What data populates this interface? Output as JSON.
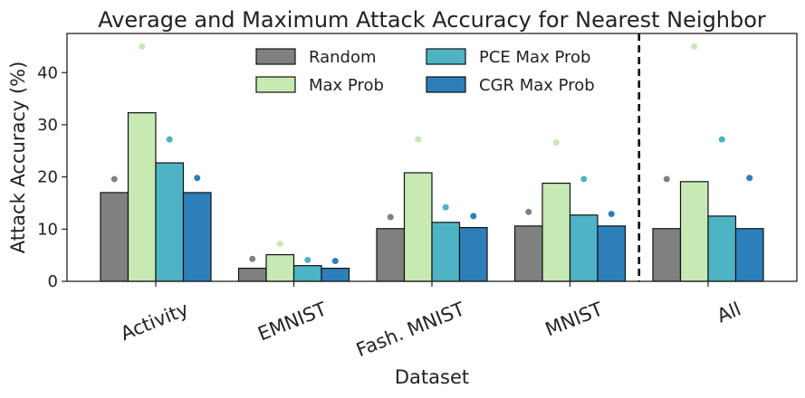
{
  "chart_data": {
    "type": "bar",
    "title": "Average and Maximum Attack Accuracy for Nearest Neighbor",
    "xlabel": "Dataset",
    "ylabel": "Attack Accuracy (%)",
    "ylim": [
      0,
      47.5
    ],
    "yticks": [
      0,
      10,
      20,
      30,
      40
    ],
    "grid": false,
    "legend_position": "top",
    "categories": [
      "Activity",
      "EMNIST",
      "Fash. MNIST",
      "MNIST",
      "All"
    ],
    "separator_after_category": "MNIST",
    "series": [
      {
        "name": "Random",
        "color": "#808080",
        "values": [
          17.0,
          2.5,
          10.1,
          10.6,
          10.1
        ],
        "max_values": [
          19.6,
          4.3,
          12.3,
          13.3,
          19.6
        ]
      },
      {
        "name": "Max Prob",
        "color": "#c7e9b4",
        "values": [
          32.3,
          5.1,
          20.8,
          18.8,
          19.1
        ],
        "max_values": [
          45.0,
          7.2,
          27.2,
          26.6,
          45.0
        ]
      },
      {
        "name": "PCE Max Prob",
        "color": "#4eb3c4",
        "values": [
          22.7,
          3.0,
          11.3,
          12.7,
          12.5
        ],
        "max_values": [
          27.2,
          4.1,
          14.2,
          19.6,
          27.2
        ]
      },
      {
        "name": "CGR Max Prob",
        "color": "#2c7fb8",
        "values": [
          17.0,
          2.5,
          10.3,
          10.6,
          10.1
        ],
        "max_values": [
          19.8,
          3.9,
          12.5,
          12.9,
          19.8
        ]
      }
    ]
  }
}
